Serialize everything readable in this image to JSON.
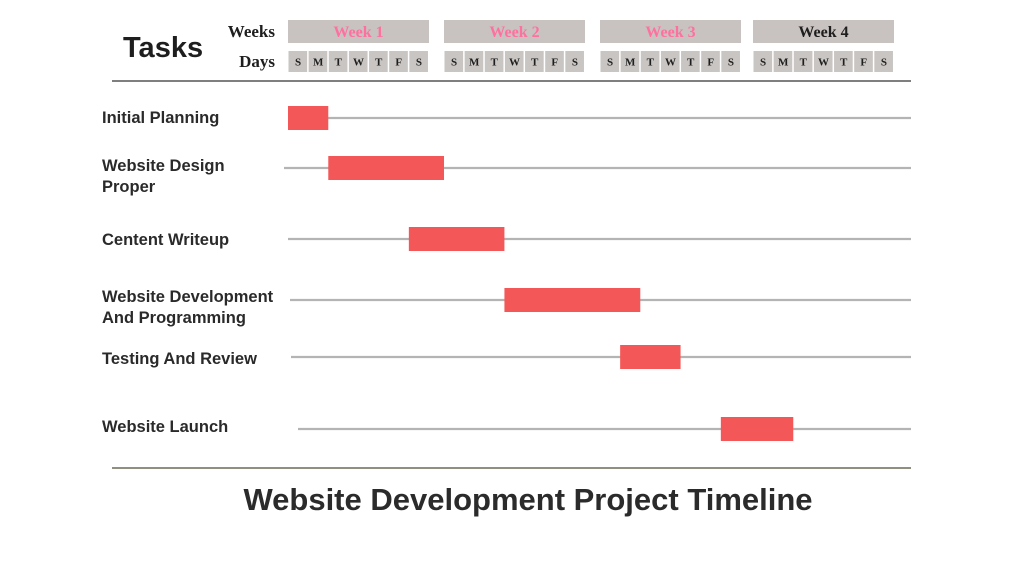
{
  "chart_data": {
    "type": "gantt",
    "title": "Website Development Project Timeline",
    "tasks_header": "Tasks",
    "weeks_label": "Weeks",
    "days_label": "Days",
    "weeks": [
      {
        "label": "Week 1",
        "color": "#ff70a0"
      },
      {
        "label": "Week 2",
        "color": "#ff70a0"
      },
      {
        "label": "Week 3",
        "color": "#ff70a0"
      },
      {
        "label": "Week 4",
        "color": "#1e1e1e"
      }
    ],
    "days": [
      "S",
      "M",
      "T",
      "W",
      "T",
      "F",
      "S"
    ],
    "bar_color": "#f45757",
    "tasks": [
      {
        "name_lines": [
          "Initial Planning"
        ],
        "start_day": 0,
        "end_day": 2
      },
      {
        "name_lines": [
          "Website Design",
          "Proper"
        ],
        "start_day": 2,
        "end_day": 7
      },
      {
        "name_lines": [
          "Centent Writeup"
        ],
        "start_day": 6,
        "end_day": 10
      },
      {
        "name_lines": [
          "Website Development",
          "And Programming"
        ],
        "start_day": 10,
        "end_day": 16
      },
      {
        "name_lines": [
          "Testing And Review"
        ],
        "start_day": 15,
        "end_day": 18
      },
      {
        "name_lines": [
          "Website Launch"
        ],
        "start_day": 20,
        "end_day": 23
      }
    ]
  }
}
